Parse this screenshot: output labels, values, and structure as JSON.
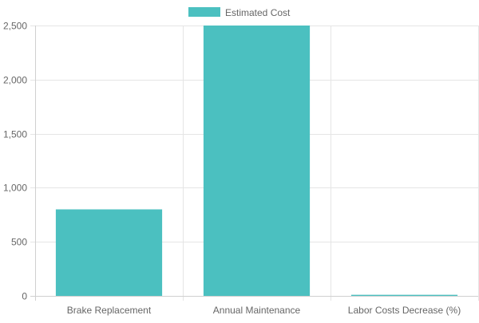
{
  "chart_data": {
    "type": "bar",
    "title": "",
    "xlabel": "",
    "ylabel": "",
    "categories": [
      "Brake Replacement",
      "Annual Maintenance",
      "Labor Costs Decrease (%)"
    ],
    "series": [
      {
        "name": "Estimated Cost",
        "color": "#4bc0c0",
        "values": [
          800,
          2500,
          10
        ]
      }
    ],
    "ylim": [
      0,
      2500
    ],
    "yticks": [
      0,
      500,
      1000,
      1500,
      2000,
      2500
    ],
    "ytick_labels": [
      "0",
      "500",
      "1,000",
      "1,500",
      "2,000",
      "2,500"
    ],
    "grid": true,
    "legend_position": "top-center"
  }
}
